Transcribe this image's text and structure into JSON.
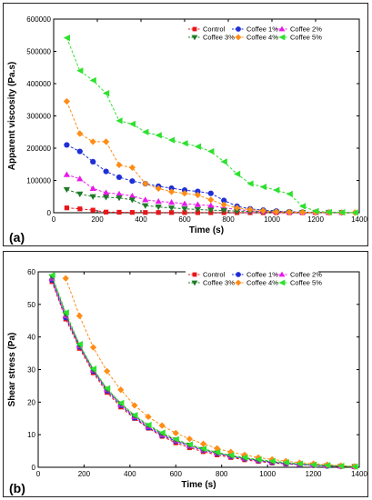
{
  "chart_data": [
    {
      "type": "line",
      "panel_label": "(a)",
      "xlabel": "Time (s)",
      "ylabel": "Apparent viscosity (Pa.s)",
      "xlim": [
        0,
        1400
      ],
      "ylim": [
        0,
        600000
      ],
      "xticks": [
        0,
        200,
        400,
        600,
        800,
        1000,
        1200,
        1400
      ],
      "yticks": [
        0,
        100000,
        200000,
        300000,
        400000,
        500000,
        600000
      ],
      "legend_position": "top-right",
      "series": [
        {
          "name": "Control",
          "color": "#e8161b",
          "marker": "square",
          "x": [
            60,
            120,
            180,
            240,
            300,
            360,
            420,
            480,
            540,
            600,
            660,
            720,
            780,
            840,
            900,
            960,
            1020,
            1080,
            1140,
            1200,
            1260
          ],
          "y": [
            15000,
            12000,
            8000,
            2000,
            1500,
            1000,
            800,
            700,
            600,
            500,
            400,
            300,
            300,
            200,
            200,
            200,
            100,
            100,
            100,
            100,
            100
          ]
        },
        {
          "name": "Coffee  1%",
          "color": "#1f2fd6",
          "marker": "circle",
          "x": [
            60,
            120,
            180,
            240,
            300,
            360,
            420,
            480,
            540,
            600,
            660,
            720,
            780,
            840,
            900,
            960,
            1020,
            1080,
            1140,
            1200,
            1260,
            1320
          ],
          "y": [
            210000,
            190000,
            158000,
            128000,
            110000,
            98000,
            90000,
            82000,
            76000,
            70000,
            66000,
            60000,
            38000,
            20000,
            12000,
            8000,
            5000,
            3000,
            2000,
            1500,
            1000,
            500
          ]
        },
        {
          "name": "Coffee  2%",
          "color": "#e81ae8",
          "marker": "triangle-up",
          "x": [
            60,
            120,
            180,
            240,
            300,
            360,
            420,
            480,
            540,
            600,
            660,
            720,
            780,
            840,
            900,
            960,
            1020,
            1080,
            1140,
            1200,
            1260,
            1320
          ],
          "y": [
            118000,
            105000,
            75000,
            62000,
            58000,
            52000,
            40000,
            35000,
            32000,
            28000,
            25000,
            22000,
            15000,
            10000,
            6000,
            4000,
            3000,
            2000,
            1500,
            1000,
            800,
            500
          ]
        },
        {
          "name": "Coffee 3%",
          "color": "#1d7a26",
          "marker": "triangle-down",
          "x": [
            60,
            120,
            180,
            240,
            300,
            360,
            420,
            480,
            540,
            600,
            660,
            720,
            780,
            840,
            900,
            960,
            1020,
            1080,
            1140,
            1200,
            1260,
            1320
          ],
          "y": [
            72000,
            58000,
            50000,
            48000,
            46000,
            40000,
            22000,
            18000,
            15000,
            12000,
            10000,
            8000,
            7000,
            5000,
            4000,
            3000,
            2000,
            1500,
            1000,
            800,
            500,
            300
          ]
        },
        {
          "name": "Coffee 4%",
          "color": "#ff8c14",
          "marker": "diamond",
          "x": [
            60,
            120,
            180,
            240,
            300,
            360,
            420,
            480,
            540,
            600,
            660,
            720,
            780,
            840,
            900,
            960,
            1020,
            1080,
            1140,
            1200,
            1260,
            1320,
            1380
          ],
          "y": [
            345000,
            245000,
            220000,
            220000,
            148000,
            140000,
            90000,
            75000,
            65000,
            60000,
            55000,
            40000,
            25000,
            15000,
            10000,
            6000,
            3000,
            2000,
            1500,
            1000,
            800,
            500,
            300
          ]
        },
        {
          "name": "Coffee 5%",
          "color": "#2fe02f",
          "marker": "triangle-left",
          "x": [
            60,
            120,
            180,
            240,
            300,
            360,
            420,
            480,
            540,
            600,
            660,
            720,
            780,
            840,
            900,
            960,
            1020,
            1080,
            1140,
            1200,
            1260,
            1320,
            1380
          ],
          "y": [
            542000,
            440000,
            410000,
            370000,
            285000,
            275000,
            250000,
            240000,
            225000,
            215000,
            205000,
            190000,
            158000,
            120000,
            90000,
            80000,
            70000,
            58000,
            20000,
            5000,
            2000,
            1000,
            500
          ]
        }
      ]
    },
    {
      "type": "line",
      "panel_label": "(b)",
      "xlabel": "Time (s)",
      "ylabel": "Shear stress (Pa)",
      "xlim": [
        0,
        1400
      ],
      "ylim": [
        0,
        60
      ],
      "xticks": [
        0,
        200,
        400,
        600,
        800,
        1000,
        1200,
        1400
      ],
      "yticks": [
        0,
        10,
        20,
        30,
        40,
        50,
        60
      ],
      "legend_position": "top-right",
      "series": [
        {
          "name": "Control",
          "color": "#e8161b",
          "marker": "square",
          "x": [
            60,
            120,
            180,
            240,
            300,
            360,
            420,
            480,
            540,
            600,
            660,
            720,
            780,
            840,
            900,
            960,
            1020,
            1080,
            1140,
            1200,
            1260,
            1320,
            1380
          ],
          "y": [
            57,
            45.5,
            36.5,
            29,
            23,
            18.5,
            15,
            12,
            9.5,
            7.5,
            6,
            4.8,
            3.8,
            3,
            2.3,
            1.8,
            1.3,
            1,
            0.8,
            0.6,
            0.4,
            0.3,
            0.2
          ]
        },
        {
          "name": "Coffee  1%",
          "color": "#1f2fd6",
          "marker": "circle",
          "x": [
            60,
            120,
            180,
            240,
            300,
            360,
            420,
            480,
            540,
            600,
            660,
            720,
            780,
            840,
            900,
            960,
            1020,
            1080,
            1140,
            1200,
            1260,
            1320,
            1380
          ],
          "y": [
            57.5,
            46,
            37,
            29.5,
            23.5,
            19,
            15.2,
            12.2,
            9.8,
            8,
            6.5,
            5.2,
            4.2,
            3.3,
            2.6,
            2,
            1.5,
            1.1,
            0.8,
            0.6,
            0.4,
            0.3,
            0.2
          ]
        },
        {
          "name": "Coffee  2%",
          "color": "#e81ae8",
          "marker": "triangle-up",
          "x": [
            60,
            120,
            180,
            240,
            300,
            360,
            420,
            480,
            540,
            600,
            660,
            720,
            780,
            840,
            900,
            960,
            1020,
            1080,
            1140,
            1200,
            1260,
            1320,
            1380
          ],
          "y": [
            58,
            46.5,
            37.2,
            29.8,
            23.8,
            19.2,
            15.5,
            12.5,
            10,
            8.2,
            6.6,
            5.3,
            4.3,
            3.4,
            2.7,
            2.1,
            1.6,
            1.2,
            0.9,
            0.7,
            0.5,
            0.3,
            0.2
          ]
        },
        {
          "name": "Coffee 3%",
          "color": "#1d7a26",
          "marker": "triangle-down",
          "x": [
            60,
            120,
            180,
            240,
            300,
            360,
            420,
            480,
            540,
            600,
            660,
            720,
            780,
            840,
            900,
            960,
            1020,
            1080,
            1140,
            1200,
            1260,
            1320,
            1380
          ],
          "y": [
            58.5,
            47,
            37.5,
            30,
            24,
            19.5,
            15.8,
            12.8,
            10.3,
            8.4,
            6.8,
            5.5,
            4.4,
            3.5,
            2.8,
            2.2,
            1.7,
            1.3,
            1,
            0.7,
            0.5,
            0.3,
            0.2
          ]
        },
        {
          "name": "Coffee 4%",
          "color": "#ff8c14",
          "marker": "diamond",
          "x": [
            120,
            180,
            240,
            300,
            360,
            420,
            480,
            540,
            600,
            660,
            720,
            780,
            840,
            900,
            960,
            1020,
            1080,
            1140,
            1200,
            1260,
            1320,
            1380
          ],
          "y": [
            58,
            46.5,
            36.8,
            29.5,
            23.8,
            19,
            15.5,
            12.8,
            10.5,
            8.7,
            7.2,
            5.8,
            4.7,
            3.8,
            3,
            2.4,
            1.9,
            1.4,
            1.1,
            0.8,
            0.5,
            0.3
          ]
        },
        {
          "name": "Coffee 5%",
          "color": "#2fe02f",
          "marker": "triangle-left",
          "x": [
            60,
            120,
            180,
            240,
            300,
            360,
            420,
            480,
            540,
            600,
            660,
            720,
            780,
            840,
            900,
            960,
            1020,
            1080,
            1140,
            1200,
            1260,
            1320,
            1380
          ],
          "y": [
            59,
            47.5,
            37.8,
            30.2,
            24.2,
            19.7,
            16,
            13,
            10.6,
            8.6,
            7,
            5.7,
            4.6,
            3.7,
            3,
            2.4,
            1.9,
            1.5,
            1.1,
            0.8,
            0.6,
            0.4,
            0.2
          ]
        }
      ]
    }
  ]
}
